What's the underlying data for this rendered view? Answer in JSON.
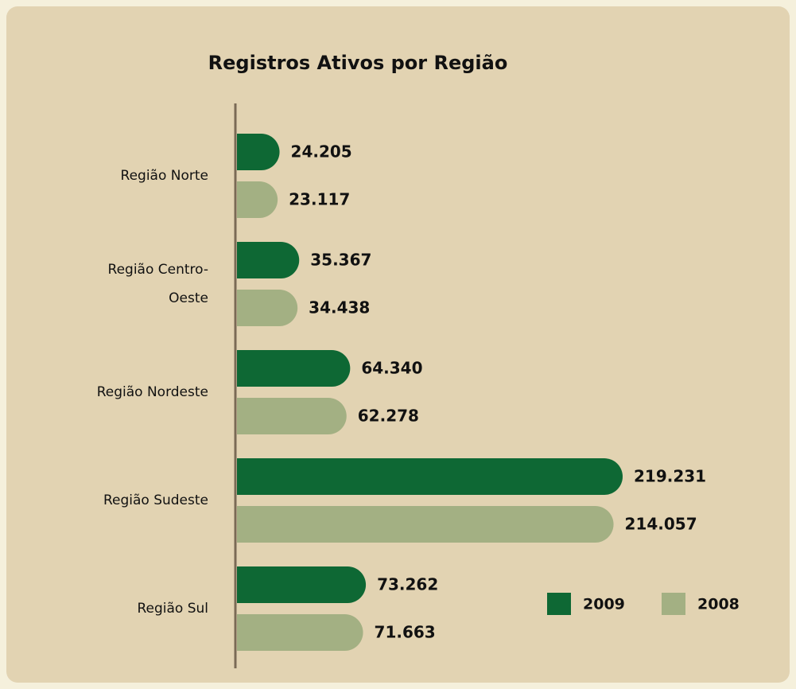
{
  "chart_data": {
    "type": "barh",
    "title": "Registros Ativos por Região",
    "categories": [
      "Região Norte",
      "Região Centro-Oeste",
      "Região Nordeste",
      "Região Sudeste",
      "Região Sul"
    ],
    "series": [
      {
        "name": "2009",
        "color": "#0e6834",
        "values": [
          24205,
          35367,
          64340,
          219231,
          73262
        ],
        "value_labels": [
          "24.205",
          "35.367",
          "64.340",
          "219.231",
          "73.262"
        ]
      },
      {
        "name": "2008",
        "color": "#a3b083",
        "values": [
          23117,
          34438,
          62278,
          214057,
          71663
        ],
        "value_labels": [
          "23.117",
          "34.438",
          "62.278",
          "214.057",
          "71.663"
        ]
      }
    ],
    "legend": "bottom-right"
  }
}
